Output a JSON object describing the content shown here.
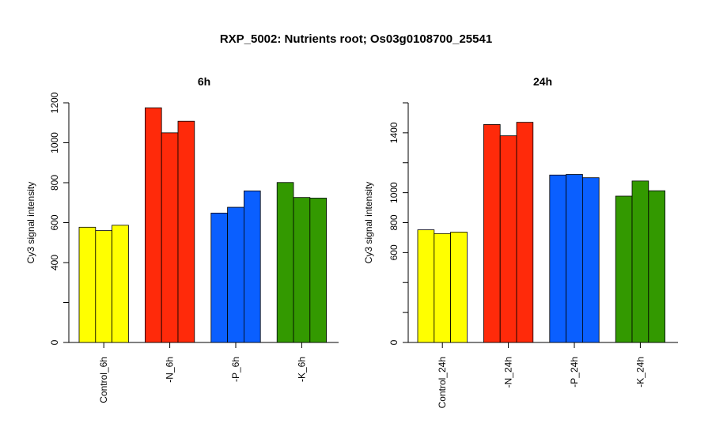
{
  "figure": {
    "title": "RXP_5002: Nutrients root; Os03g0108700_25541"
  },
  "chart_data": [
    {
      "type": "bar",
      "title": "6h",
      "ylabel": "Cy3 signal intensity",
      "xlabel": "",
      "ylim": [
        0,
        1200
      ],
      "yticks": [
        0,
        400,
        600,
        800,
        1000,
        1200
      ],
      "y_scale_note": "",
      "categories": [
        "Control_6h",
        "-N_6h",
        "-P_6h",
        "-K_6h"
      ],
      "colors": [
        "#ffff00",
        "#ff2a0a",
        "#0a5fff",
        "#339900"
      ],
      "values": [
        [
          577,
          560,
          587
        ],
        [
          1175,
          1050,
          1108
        ],
        [
          648,
          677,
          759
        ],
        [
          801,
          726,
          723
        ]
      ]
    },
    {
      "type": "bar",
      "title": "24h",
      "ylabel": "Cy3 signal intensity",
      "xlabel": "",
      "ylim": [
        0,
        1600
      ],
      "yticks": [
        0,
        600,
        800,
        1000,
        1400
      ],
      "y_scale_note": "",
      "categories": [
        "Control_24h",
        "-N_24h",
        "-P_24h",
        "-K_24h"
      ],
      "colors": [
        "#ffff00",
        "#ff2a0a",
        "#0a5fff",
        "#339900"
      ],
      "values": [
        [
          752,
          727,
          737
        ],
        [
          1455,
          1380,
          1470
        ],
        [
          1118,
          1122,
          1100
        ],
        [
          977,
          1078,
          1013
        ]
      ]
    }
  ]
}
